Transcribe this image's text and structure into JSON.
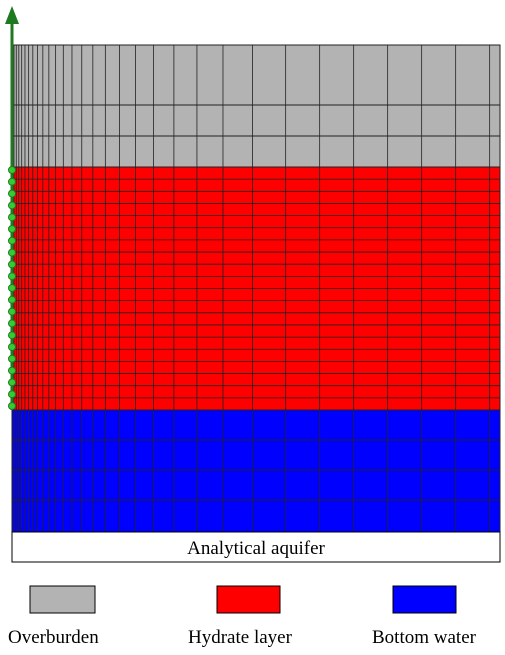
{
  "aquifer_label": "Analytical aquifer",
  "legend": [
    {
      "label": "Overburden"
    },
    {
      "label": "Hydrate layer"
    },
    {
      "label": "Bottom water"
    }
  ]
}
